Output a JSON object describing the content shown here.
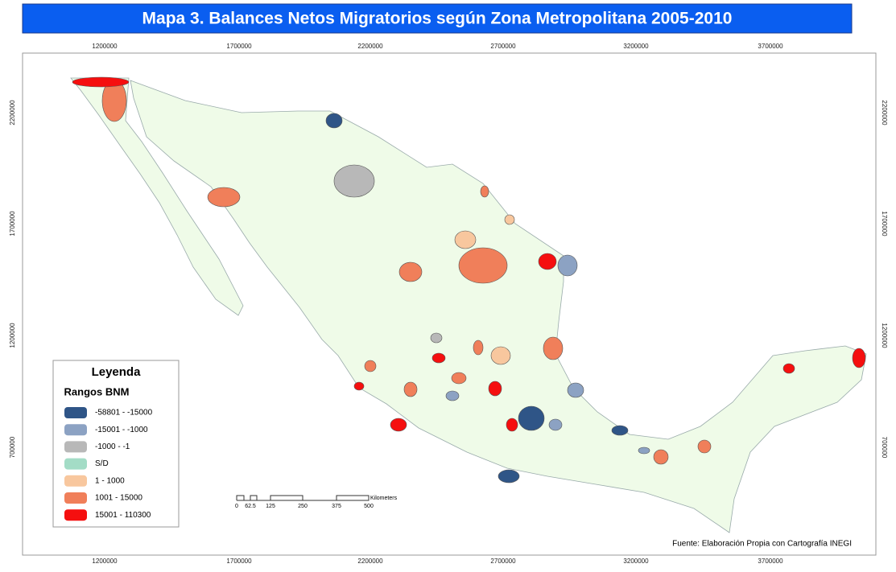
{
  "title": "Mapa 3. Balances Netos Migratorios según Zona Metropolitana 2005-2010",
  "x_labels": [
    "1200000",
    "1700000",
    "2200000",
    "2700000",
    "3200000",
    "3700000"
  ],
  "y_labels": [
    "2200000",
    "1700000",
    "1200000",
    "700000"
  ],
  "legend": {
    "title": "Leyenda",
    "subtitle": "Rangos BNM",
    "items": [
      {
        "label": "-58801 - -15000",
        "color": "#2f5587"
      },
      {
        "label": "-15001 - -1000",
        "color": "#8ca2c3"
      },
      {
        "label": "-1000 - -1",
        "color": "#b8b8b8"
      },
      {
        "label": "S/D",
        "color": "#a3dcc6"
      },
      {
        "label": "1 - 1000",
        "color": "#f8c79e"
      },
      {
        "label": "1001 - 15000",
        "color": "#f07f5a"
      },
      {
        "label": "15001 - 110300",
        "color": "#f50f0f"
      }
    ]
  },
  "scale": {
    "labels": [
      "0",
      "62.5",
      "125",
      "250",
      "375",
      "500"
    ],
    "unit": "Kilometers"
  },
  "source": "Fuente: Elaboración Propia con Cartografía INEGI"
}
